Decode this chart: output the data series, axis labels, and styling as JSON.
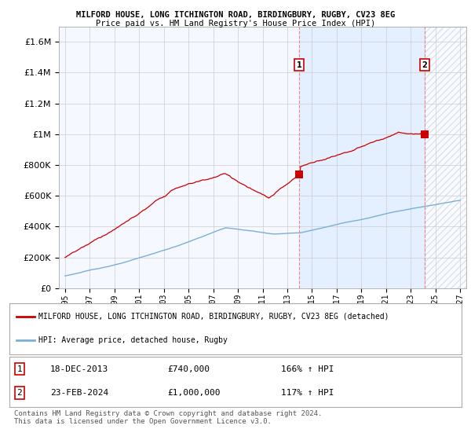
{
  "title1": "MILFORD HOUSE, LONG ITCHINGTON ROAD, BIRDINGBURY, RUGBY, CV23 8EG",
  "title2": "Price paid vs. HM Land Registry's House Price Index (HPI)",
  "legend_line1": "MILFORD HOUSE, LONG ITCHINGTON ROAD, BIRDINGBURY, RUGBY, CV23 8EG (detached)",
  "legend_line2": "HPI: Average price, detached house, Rugby",
  "annotation1_date": "18-DEC-2013",
  "annotation1_value": 740000,
  "annotation1_hpi": "166% ↑ HPI",
  "annotation2_date": "23-FEB-2024",
  "annotation2_value": 1000000,
  "annotation2_hpi": "117% ↑ HPI",
  "footnote": "Contains HM Land Registry data © Crown copyright and database right 2024.\nThis data is licensed under the Open Government Licence v3.0.",
  "hpi_color": "#7bafd4",
  "price_color": "#cc0000",
  "vline_color": "#ee8888",
  "shade_color": "#ddeeff",
  "hatch_color": "#ccddee",
  "background_color": "#f5f8ff",
  "grid_color": "#cccccc",
  "ylim": [
    0,
    1700000
  ],
  "yticks": [
    0,
    200000,
    400000,
    600000,
    800000,
    1000000,
    1200000,
    1400000,
    1600000
  ],
  "sale1_year": 2013.96,
  "sale2_year": 2024.12,
  "xmin": 1994.5,
  "xmax": 2027.5
}
